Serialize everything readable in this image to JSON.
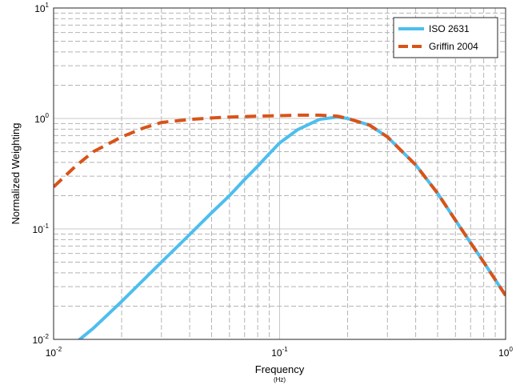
{
  "chart_data": {
    "type": "line",
    "xscale": "log",
    "yscale": "log",
    "xlim": [
      0.01,
      1
    ],
    "ylim": [
      0.01,
      10
    ],
    "xlabel": "Frequency",
    "xlabel_unit": "(Hz)",
    "ylabel": "Normalized Weighting",
    "x_ticks": [
      {
        "base": "10",
        "exp": "-2",
        "value": 0.01
      },
      {
        "base": "10",
        "exp": "-1",
        "value": 0.1
      },
      {
        "base": "10",
        "exp": "0",
        "value": 1
      }
    ],
    "y_ticks": [
      {
        "base": "10",
        "exp": "-2",
        "value": 0.01
      },
      {
        "base": "10",
        "exp": "-1",
        "value": 0.1
      },
      {
        "base": "10",
        "exp": "0",
        "value": 1
      },
      {
        "base": "10",
        "exp": "1",
        "value": 10
      }
    ],
    "grid": true,
    "grid_style": "dashed",
    "legend_position": "top-right",
    "series": [
      {
        "name": "ISO 2631",
        "color": "#4DBEEE",
        "line_style": "solid",
        "x": [
          0.0125,
          0.015,
          0.02,
          0.03,
          0.04,
          0.05,
          0.06,
          0.07,
          0.08,
          0.09,
          0.1,
          0.12,
          0.15,
          0.18,
          0.2,
          0.25,
          0.3,
          0.4,
          0.5,
          0.6,
          0.7,
          0.8,
          1.0
        ],
        "y": [
          0.0093,
          0.0126,
          0.022,
          0.05,
          0.089,
          0.14,
          0.2,
          0.28,
          0.37,
          0.48,
          0.6,
          0.79,
          0.98,
          1.03,
          1.0,
          0.87,
          0.68,
          0.38,
          0.21,
          0.12,
          0.075,
          0.05,
          0.025
        ]
      },
      {
        "name": "Griffin 2004",
        "color": "#D95319",
        "line_style": "dashed",
        "x": [
          0.01,
          0.0125,
          0.015,
          0.02,
          0.025,
          0.03,
          0.04,
          0.05,
          0.06,
          0.08,
          0.1,
          0.12,
          0.15,
          0.18,
          0.2,
          0.25,
          0.3,
          0.4,
          0.5,
          0.6,
          0.7,
          0.8,
          1.0
        ],
        "y": [
          0.24,
          0.37,
          0.5,
          0.68,
          0.82,
          0.92,
          0.98,
          1.01,
          1.03,
          1.05,
          1.06,
          1.07,
          1.07,
          1.05,
          1.0,
          0.87,
          0.68,
          0.38,
          0.21,
          0.12,
          0.075,
          0.05,
          0.025
        ]
      }
    ]
  }
}
